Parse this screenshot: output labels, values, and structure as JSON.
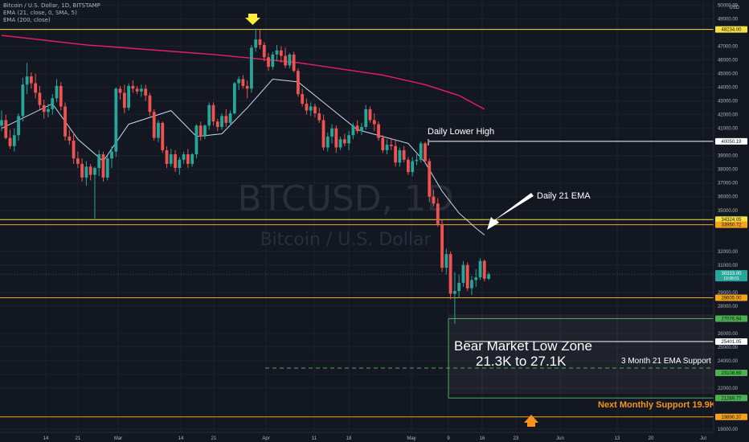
{
  "legend": {
    "symbol_line": "Bitcoin / U.S. Dollar, 1D, BITSTAMP",
    "ema21_line": "EMA (21, close, 0, SMA, 5)",
    "ema200_line": "EMA (200, close)"
  },
  "watermark": {
    "symbol": "BTCUSD, 1D",
    "name": "Bitcoin / U.S. Dollar"
  },
  "colors": {
    "background": "#131722",
    "up": "#26a69a",
    "down": "#ef5350",
    "ema21": "#c8d6f0",
    "ema200": "#e91e63",
    "yellow_level": "#f5e142",
    "orange_level": "#f6a21b",
    "green_level": "#4caf50",
    "white_level": "#ffffff",
    "annotation_orange": "#f7931a",
    "marker_yellow": "#ffeb3b"
  },
  "chart_data": {
    "type": "candlestick",
    "currency_label": "USD",
    "x_tick_labels": [
      "14",
      "21",
      "Mar",
      "14",
      "21",
      "Apr",
      "11",
      "18",
      "May",
      "9",
      "16",
      "23",
      "Jun",
      "13",
      "20",
      "Jul"
    ],
    "y_tick_labels": [
      "50000.00",
      "49000.00",
      "47000.00",
      "46000.00",
      "45000.00",
      "44000.00",
      "43000.00",
      "42000.00",
      "41000.00",
      "39000.00",
      "38000.00",
      "37000.00",
      "36000.00",
      "35000.00",
      "32000.00",
      "31000.00",
      "29000.00",
      "28000.00",
      "26000.00",
      "25000.00",
      "24000.00",
      "23000.00",
      "22000.00",
      "19000.00"
    ],
    "ylim": [
      18500,
      50700
    ],
    "levels": [
      {
        "price": 48234,
        "label": "48234.00",
        "color": "yellow"
      },
      {
        "price": 40050.19,
        "label": "40050.19",
        "color": "white"
      },
      {
        "price": 34324.05,
        "label": "34324.05",
        "color": "yellow"
      },
      {
        "price": 33950.72,
        "label": "33950.72",
        "color": "orange"
      },
      {
        "price": 28605,
        "label": "28605.00",
        "color": "orange"
      },
      {
        "price": 27076.94,
        "label": "27076.94",
        "color": "green"
      },
      {
        "price": 25401.05,
        "label": "25401.05",
        "color": "white"
      },
      {
        "price": 23108.69,
        "label": "23108.69",
        "color": "green"
      },
      {
        "price": 21269.77,
        "label": "21269.77",
        "color": "green"
      },
      {
        "price": 19890.37,
        "label": "19890.37",
        "color": "orange"
      }
    ],
    "current_price": {
      "price": 30333,
      "label": "30333.00",
      "countdown": "19:08:01"
    },
    "annotations": {
      "daily_lower_high": "Daily Lower High",
      "daily_21_ema": "Daily 21 EMA",
      "zone_title": "Bear Market Low Zone",
      "zone_range": "21.3K to 27.1K",
      "ema_support": "3 Month 21 EMA Support",
      "monthly_support": "Next Monthly Support 19.9K"
    },
    "candles": [
      [
        41200,
        42300,
        40800,
        41600
      ],
      [
        41600,
        42000,
        40200,
        40300
      ],
      [
        40300,
        40900,
        39500,
        39700
      ],
      [
        39700,
        41000,
        39300,
        40500
      ],
      [
        40500,
        42100,
        40100,
        41900
      ],
      [
        41900,
        44700,
        41500,
        44200
      ],
      [
        44200,
        45800,
        43500,
        44800
      ],
      [
        44800,
        45100,
        43900,
        44300
      ],
      [
        44300,
        45000,
        43200,
        43600
      ],
      [
        43600,
        44100,
        42400,
        42700
      ],
      [
        42700,
        43100,
        41700,
        42200
      ],
      [
        42200,
        42800,
        41800,
        42400
      ],
      [
        42400,
        43500,
        42000,
        43200
      ],
      [
        43200,
        44600,
        42900,
        44100
      ],
      [
        44100,
        44400,
        42300,
        42600
      ],
      [
        42600,
        42900,
        40100,
        40400
      ],
      [
        40400,
        40900,
        39800,
        40100
      ],
      [
        40100,
        40700,
        38400,
        38800
      ],
      [
        38800,
        39300,
        38100,
        38400
      ],
      [
        38400,
        38800,
        37100,
        37400
      ],
      [
        37400,
        38600,
        36800,
        38200
      ],
      [
        38200,
        38400,
        37200,
        37600
      ],
      [
        37600,
        38200,
        34400,
        38100
      ],
      [
        38100,
        39400,
        37500,
        39100
      ],
      [
        39100,
        39300,
        37100,
        37400
      ],
      [
        37400,
        39000,
        37200,
        38800
      ],
      [
        38800,
        39700,
        38100,
        39300
      ],
      [
        39300,
        44000,
        38900,
        43900
      ],
      [
        43900,
        44100,
        43100,
        43600
      ],
      [
        43600,
        44200,
        42100,
        42500
      ],
      [
        42500,
        44300,
        42300,
        44100
      ],
      [
        44100,
        44500,
        43600,
        43900
      ],
      [
        43900,
        44100,
        43500,
        43700
      ],
      [
        43700,
        44200,
        43300,
        43900
      ],
      [
        43900,
        44200,
        43000,
        43400
      ],
      [
        43400,
        43600,
        41900,
        42200
      ],
      [
        42200,
        42400,
        40100,
        40300
      ],
      [
        40300,
        41600,
        40000,
        41400
      ],
      [
        41400,
        41500,
        39200,
        39400
      ],
      [
        39400,
        39700,
        38100,
        38400
      ],
      [
        38400,
        39500,
        38200,
        39100
      ],
      [
        39100,
        39400,
        37800,
        38100
      ],
      [
        38100,
        38900,
        37600,
        38700
      ],
      [
        38700,
        39300,
        38400,
        39100
      ],
      [
        39100,
        39500,
        38100,
        38400
      ],
      [
        38400,
        39200,
        38200,
        39100
      ],
      [
        39100,
        41300,
        38800,
        41200
      ],
      [
        41200,
        41500,
        40100,
        40400
      ],
      [
        40400,
        41300,
        40200,
        41200
      ],
      [
        41200,
        42900,
        40900,
        42700
      ],
      [
        42700,
        42900,
        41200,
        41500
      ],
      [
        41500,
        41700,
        40800,
        41100
      ],
      [
        41100,
        42100,
        40900,
        41900
      ],
      [
        41900,
        42400,
        41100,
        41400
      ],
      [
        41400,
        42300,
        41200,
        42100
      ],
      [
        42100,
        44400,
        42000,
        44300
      ],
      [
        44300,
        44800,
        43800,
        44600
      ],
      [
        44600,
        44900,
        43900,
        44100
      ],
      [
        44100,
        44500,
        43200,
        43900
      ],
      [
        43900,
        47100,
        43600,
        46900
      ],
      [
        46900,
        48300,
        46600,
        47500
      ],
      [
        47500,
        48200,
        46800,
        47100
      ],
      [
        47100,
        47300,
        45900,
        46200
      ],
      [
        46200,
        46500,
        45200,
        45500
      ],
      [
        45500,
        46600,
        45300,
        46400
      ],
      [
        46400,
        47100,
        45900,
        46700
      ],
      [
        46700,
        47000,
        45800,
        46300
      ],
      [
        46300,
        46900,
        45400,
        45600
      ],
      [
        45600,
        46500,
        45400,
        46400
      ],
      [
        46400,
        46600,
        45100,
        45200
      ],
      [
        45200,
        45400,
        43300,
        43500
      ],
      [
        43500,
        43900,
        42600,
        42800
      ],
      [
        42800,
        43200,
        42000,
        42300
      ],
      [
        42300,
        42900,
        41900,
        42600
      ],
      [
        42600,
        42800,
        41800,
        42100
      ],
      [
        42100,
        42500,
        41400,
        41600
      ],
      [
        41600,
        42000,
        39400,
        39600
      ],
      [
        39600,
        40700,
        39300,
        40400
      ],
      [
        40400,
        41300,
        39900,
        41000
      ],
      [
        41000,
        41200,
        39200,
        39600
      ],
      [
        39600,
        40400,
        39400,
        40200
      ],
      [
        40200,
        40600,
        39700,
        39900
      ],
      [
        39900,
        40800,
        39400,
        40500
      ],
      [
        40500,
        41400,
        40200,
        41200
      ],
      [
        41200,
        41600,
        40600,
        40800
      ],
      [
        40800,
        41400,
        40500,
        41100
      ],
      [
        41100,
        42700,
        40900,
        42400
      ],
      [
        42400,
        42600,
        41400,
        41600
      ],
      [
        41600,
        42100,
        40800,
        41300
      ],
      [
        41300,
        41500,
        40100,
        40300
      ],
      [
        40300,
        40500,
        39200,
        39400
      ],
      [
        39400,
        40200,
        39100,
        39800
      ],
      [
        39800,
        40300,
        39400,
        39700
      ],
      [
        39700,
        40100,
        38200,
        38500
      ],
      [
        38500,
        39600,
        38200,
        39400
      ],
      [
        39400,
        39700,
        38500,
        38700
      ],
      [
        38700,
        38900,
        37600,
        37800
      ],
      [
        37800,
        38900,
        37500,
        38600
      ],
      [
        38600,
        39100,
        38300,
        38700
      ],
      [
        38700,
        40050,
        38500,
        39900
      ],
      [
        39900,
        40000,
        38400,
        38600
      ],
      [
        38600,
        38800,
        35600,
        36000
      ],
      [
        36000,
        36500,
        35300,
        35500
      ],
      [
        35500,
        35900,
        33800,
        34000
      ],
      [
        34000,
        34300,
        30500,
        30800
      ],
      [
        30800,
        32200,
        30300,
        31800
      ],
      [
        31800,
        32000,
        28500,
        28900
      ],
      [
        28900,
        30500,
        26700,
        29100
      ],
      [
        29100,
        30300,
        28600,
        29700
      ],
      [
        29700,
        31300,
        29400,
        31000
      ],
      [
        31000,
        31200,
        29100,
        29300
      ],
      [
        29300,
        30200,
        28800,
        29900
      ],
      [
        29900,
        30700,
        29400,
        30100
      ],
      [
        30100,
        31500,
        29900,
        31300
      ],
      [
        31300,
        31400,
        29800,
        30000
      ],
      [
        30000,
        30500,
        29900,
        30333
      ]
    ],
    "ema21": [
      [
        0,
        41000
      ],
      [
        12,
        42800
      ],
      [
        18,
        40200
      ],
      [
        24,
        38600
      ],
      [
        30,
        41300
      ],
      [
        40,
        42300
      ],
      [
        46,
        40400
      ],
      [
        52,
        40600
      ],
      [
        58,
        42500
      ],
      [
        64,
        44600
      ],
      [
        70,
        44400
      ],
      [
        76,
        42900
      ],
      [
        84,
        40900
      ],
      [
        96,
        39900
      ],
      [
        100,
        38500
      ],
      [
        104,
        36400
      ],
      [
        108,
        34800
      ],
      [
        112,
        33700
      ],
      [
        114,
        33200
      ]
    ],
    "ema200": [
      [
        0,
        47800
      ],
      [
        20,
        47100
      ],
      [
        50,
        46400
      ],
      [
        70,
        45800
      ],
      [
        90,
        44900
      ],
      [
        100,
        44200
      ],
      [
        108,
        43400
      ],
      [
        114,
        42400
      ]
    ]
  }
}
